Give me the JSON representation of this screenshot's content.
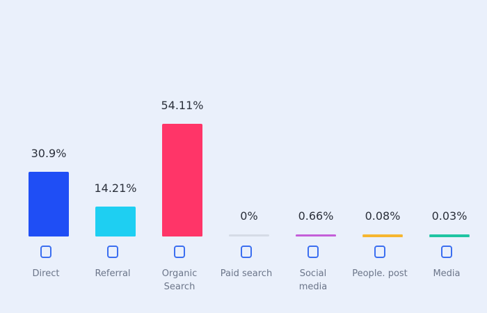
{
  "chart_data": {
    "type": "bar",
    "categories": [
      "Direct",
      "Referral",
      "Organic Search",
      "Paid search",
      "Social media",
      "People. post",
      "Media"
    ],
    "values": [
      30.9,
      14.21,
      54.11,
      0,
      0.66,
      0.08,
      0.03
    ],
    "value_labels": [
      "30.9%",
      "14.21%",
      "54.11%",
      "0%",
      "0.66%",
      "0.08%",
      "0.03%"
    ],
    "colors": [
      "#1f4ef5",
      "#1ecff2",
      "#ff3568",
      "#d5dbe6",
      "#c45ed8",
      "#f6b62f",
      "#1fc4a2"
    ]
  }
}
